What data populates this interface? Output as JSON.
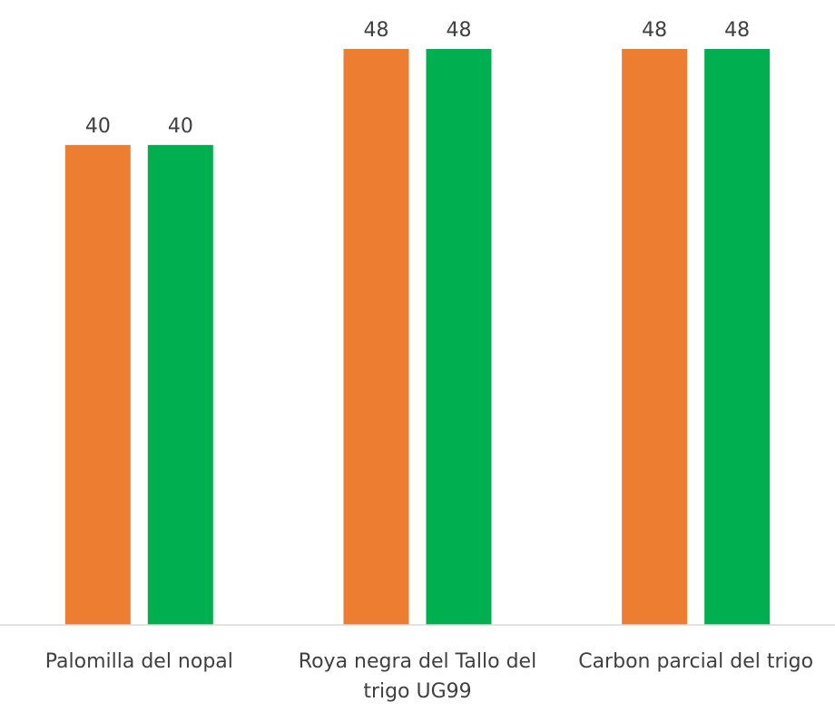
{
  "chart_data": {
    "type": "bar",
    "categories": [
      [
        "Palomilla del nopal"
      ],
      [
        "Roya negra del Tallo del",
        "trigo UG99"
      ],
      [
        "Carbon parcial del trigo"
      ]
    ],
    "series": [
      {
        "values": [
          40,
          48,
          48
        ],
        "color": "#ED7D31"
      },
      {
        "values": [
          40,
          48,
          48
        ],
        "color": "#00B050"
      }
    ],
    "title": "",
    "xlabel": "",
    "ylabel": "",
    "ylim": [
      0,
      48
    ],
    "data_labels": true,
    "y_axis_visible": false,
    "grid": false,
    "legend": "none",
    "axis_color": "#D9D9D9",
    "label_color": "#404040"
  }
}
